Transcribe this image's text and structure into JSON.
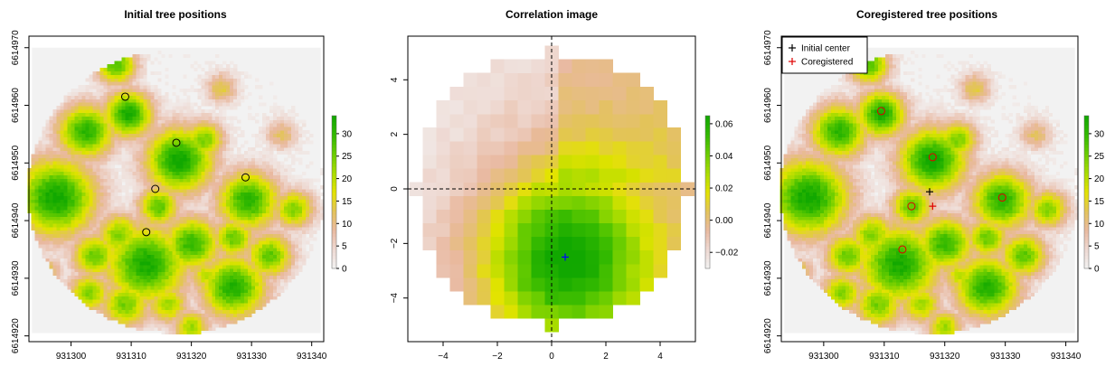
{
  "colors": {
    "ramp": [
      "#f2f2f2",
      "#eed9d2",
      "#e9b9a0",
      "#e3c35a",
      "#e3e300",
      "#a9dc00",
      "#6bcd00",
      "#33b900",
      "#11a800"
    ],
    "plot_background": "#f2f2f2",
    "tree_marker": "#000000",
    "initial_center": "#000000",
    "coregistered": "#e00000",
    "peak_marker": "#0000ff"
  },
  "panels": [
    {
      "id": "initial",
      "title": "Initial tree positions"
    },
    {
      "id": "correlation",
      "title": "Correlation image"
    },
    {
      "id": "coregistered",
      "title": "Coregistered tree positions"
    }
  ],
  "chart_data": [
    {
      "type": "heatmap",
      "title": "Initial tree positions",
      "xlim": [
        931293,
        931342
      ],
      "ylim": [
        6614919,
        6614972
      ],
      "x_ticks": [
        931300,
        931310,
        931320,
        931330,
        931340
      ],
      "y_ticks": [
        6614920,
        6614930,
        6614940,
        6614950,
        6614960,
        6614970
      ],
      "raster_extent": {
        "x": [
          931293.5,
          931341.5
        ],
        "y": [
          6614920.5,
          6614970
        ]
      },
      "plot_center": [
        931317.5,
        6614945
      ],
      "plot_radius": 24.7,
      "colorbar": {
        "range": [
          0,
          34
        ],
        "ticks": [
          0,
          5,
          10,
          15,
          20,
          25,
          30
        ]
      },
      "tree_blobs": [
        {
          "x": 931297.5,
          "y": 6614944,
          "radius": 5,
          "height": 34
        },
        {
          "x": 931302.5,
          "y": 6614955.5,
          "radius": 3.5,
          "height": 31
        },
        {
          "x": 931309.5,
          "y": 6614958.5,
          "radius": 3,
          "height": 33
        },
        {
          "x": 931307.5,
          "y": 6614967,
          "radius": 2.5,
          "height": 28
        },
        {
          "x": 931318,
          "y": 6614950.5,
          "radius": 4.2,
          "height": 34
        },
        {
          "x": 931322,
          "y": 6614954,
          "radius": 2.5,
          "height": 25
        },
        {
          "x": 931329.5,
          "y": 6614943.5,
          "radius": 3.8,
          "height": 31
        },
        {
          "x": 931312.5,
          "y": 6614932.5,
          "radius": 5,
          "height": 33
        },
        {
          "x": 931320,
          "y": 6614936,
          "radius": 3.5,
          "height": 30
        },
        {
          "x": 931314.5,
          "y": 6614942.5,
          "radius": 2.5,
          "height": 27
        },
        {
          "x": 931308,
          "y": 6614937.5,
          "radius": 2.8,
          "height": 24
        },
        {
          "x": 931304,
          "y": 6614934,
          "radius": 2.8,
          "height": 26
        },
        {
          "x": 931303,
          "y": 6614927.5,
          "radius": 2.5,
          "height": 24
        },
        {
          "x": 931309,
          "y": 6614925.5,
          "radius": 3,
          "height": 25
        },
        {
          "x": 931327,
          "y": 6614928.5,
          "radius": 4,
          "height": 32
        },
        {
          "x": 931327,
          "y": 6614937,
          "radius": 2.5,
          "height": 26
        },
        {
          "x": 931333,
          "y": 6614934,
          "radius": 2.8,
          "height": 27
        },
        {
          "x": 931337,
          "y": 6614942,
          "radius": 2.5,
          "height": 24
        },
        {
          "x": 931316,
          "y": 6614925.5,
          "radius": 2.5,
          "height": 22
        },
        {
          "x": 931322.5,
          "y": 6614930.5,
          "radius": 2,
          "height": 20
        },
        {
          "x": 931320,
          "y": 6614921.5,
          "radius": 2.2,
          "height": 22
        },
        {
          "x": 931325,
          "y": 6614963,
          "radius": 2,
          "height": 14
        },
        {
          "x": 931335,
          "y": 6614955,
          "radius": 2,
          "height": 12
        },
        {
          "x": 931334,
          "y": 6614924,
          "radius": 2.2,
          "height": 18
        },
        {
          "x": 931296,
          "y": 6614931,
          "radius": 2,
          "height": 14
        }
      ],
      "tree_markers": [
        {
          "x": 931309,
          "y": 6614961.5
        },
        {
          "x": 931317.5,
          "y": 6614953.5
        },
        {
          "x": 931329,
          "y": 6614947.5
        },
        {
          "x": 931314,
          "y": 6614945.5
        },
        {
          "x": 931312.5,
          "y": 6614938
        }
      ]
    },
    {
      "type": "heatmap",
      "title": "Correlation image",
      "xlim": [
        -5.3,
        5.3
      ],
      "ylim": [
        -5.6,
        5.6
      ],
      "x_ticks": [
        -4,
        -2,
        0,
        2,
        4
      ],
      "y_ticks": [
        -4,
        -2,
        0,
        2,
        4
      ],
      "raster_extent": {
        "x": [
          -5.25,
          5.25
        ],
        "y": [
          -5.25,
          5.25
        ]
      },
      "cell_size": 0.5,
      "disc_radius": 5.0,
      "dashed_reference_lines": {
        "x": 0,
        "y": 0
      },
      "peak": {
        "x": 0.5,
        "y": -2.5
      },
      "colorbar": {
        "range": [
          -0.03,
          0.065
        ],
        "ticks": [
          -0.02,
          0,
          0.02,
          0.04,
          0.06
        ],
        "tick_labels": [
          "−0.02",
          "0.00",
          "0.02",
          "0.04",
          "0.06"
        ]
      }
    },
    {
      "type": "heatmap",
      "title": "Coregistered tree positions",
      "xlim": [
        931293,
        931342
      ],
      "ylim": [
        6614919,
        6614972
      ],
      "x_ticks": [
        931300,
        931310,
        931320,
        931330,
        931340
      ],
      "y_ticks": [
        6614920,
        6614930,
        6614940,
        6614950,
        6614960,
        6614970
      ],
      "colorbar": {
        "range": [
          0,
          34
        ],
        "ticks": [
          0,
          5,
          10,
          15,
          20,
          25,
          30
        ]
      },
      "legend": {
        "position": "top-left",
        "entries": [
          {
            "label": "Initial center",
            "symbol": "+",
            "color": "#000000"
          },
          {
            "label": "Coregistered",
            "symbol": "+",
            "color": "#e00000"
          }
        ]
      },
      "initial_center": {
        "x": 931317.5,
        "y": 6614945
      },
      "coregistered_center": {
        "x": 931318,
        "y": 6614942.5
      },
      "tree_markers": [
        {
          "x": 931309.5,
          "y": 6614959
        },
        {
          "x": 931318,
          "y": 6614951
        },
        {
          "x": 931329.5,
          "y": 6614944
        },
        {
          "x": 931314.5,
          "y": 6614942.5
        },
        {
          "x": 931313,
          "y": 6614935
        }
      ]
    }
  ]
}
